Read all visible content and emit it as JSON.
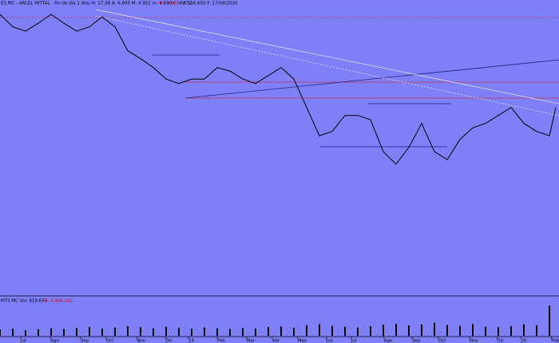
{
  "chart_data": [
    {
      "type": "line",
      "title": "ES.MC - ARCEL MITTAL - Fin de día 1 días H: 17:38 A: 6.895 M: 6.951 m: 6.839 C: 6.872",
      "change": "P: -0.023",
      "subtitle": "V: 516.650 F: 17/04/2020",
      "x": [
        0,
        2,
        4,
        6,
        8,
        10,
        12,
        14,
        16,
        18,
        20,
        22,
        24,
        26,
        28,
        30,
        32,
        34,
        36,
        38,
        40,
        42,
        44,
        46,
        48,
        50,
        52,
        54,
        56,
        58,
        60,
        62,
        64,
        66,
        68,
        70,
        72,
        74,
        76,
        78,
        80,
        82,
        84,
        86,
        87
      ],
      "series": [
        {
          "color": "#000000",
          "values": [
            27.5,
            26.1,
            25.6,
            26.5,
            27.5,
            26.5,
            25.6,
            26.1,
            27.2,
            26.1,
            23.4,
            22.5,
            21.5,
            20.2,
            19.7,
            20.2,
            20.2,
            21.5,
            21.1,
            20.2,
            19.7,
            20.6,
            21.5,
            20.2,
            17.0,
            13.8,
            14.3,
            16.1,
            16.1,
            15.6,
            12.0,
            10.6,
            12.5,
            15.2,
            12.0,
            11.1,
            13.4,
            14.7,
            15.2,
            16.1,
            17.0,
            15.2,
            14.3,
            13.8,
            17.0
          ]
        }
      ],
      "xlim": [
        0,
        87.5
      ],
      "ylim": [
        -4,
        28.4
      ]
    },
    {
      "type": "bar",
      "title": "MTS.MC Vol: 819.655",
      "change": "P: 3.446.241",
      "x": [
        0,
        2,
        4,
        6,
        8,
        10,
        12,
        14,
        16,
        18,
        20,
        22,
        24,
        26,
        28,
        30,
        32,
        34,
        36,
        38,
        40,
        42,
        44,
        46,
        48,
        50,
        52,
        54,
        56,
        58,
        60,
        62,
        64,
        66,
        68,
        70,
        72,
        74,
        76,
        78,
        80,
        82,
        84,
        86
      ],
      "series": [
        {
          "color": "#000000",
          "values": [
            2500000,
            2800000,
            2200000,
            2600000,
            3000000,
            2700000,
            3100000,
            3500000,
            2900000,
            3300000,
            3800000,
            3400000,
            3000000,
            3600000,
            3200000,
            2800000,
            3300000,
            3000000,
            2700000,
            3100000,
            2900000,
            3500000,
            3700000,
            3200000,
            4200000,
            4600000,
            3900000,
            3600000,
            3300000,
            3800000,
            4400000,
            4800000,
            4100000,
            4500000,
            5200000,
            4300000,
            3900000,
            4700000,
            3600000,
            3400000,
            3800000,
            4600000,
            4200000,
            12000000
          ]
        }
      ],
      "xlim": [
        0,
        87.5
      ],
      "ylim": [
        0,
        13000000
      ],
      "xticks": [
        {
          "value": 3.25,
          "label": "Jul"
        },
        {
          "value": 7.9,
          "label": "Ago"
        },
        {
          "value": 12.6,
          "label": "Sep"
        },
        {
          "value": 16.6,
          "label": "Oct"
        },
        {
          "value": 21.4,
          "label": "Nov"
        },
        {
          "value": 25.9,
          "label": "Dic"
        },
        {
          "value": 29.5,
          "label": "19"
        },
        {
          "value": 34,
          "label": "Feb"
        },
        {
          "value": 38.6,
          "label": "Mar"
        },
        {
          "value": 42.6,
          "label": "Abr"
        },
        {
          "value": 46.6,
          "label": "May"
        },
        {
          "value": 51.1,
          "label": "Jun"
        },
        {
          "value": 55,
          "label": "Jul"
        },
        {
          "value": 60.1,
          "label": "Ago"
        },
        {
          "value": 64.5,
          "label": "Sep"
        },
        {
          "value": 68.6,
          "label": "Oct"
        },
        {
          "value": 73.5,
          "label": "Nov"
        },
        {
          "value": 77.8,
          "label": "Dic"
        },
        {
          "value": 81.5,
          "label": "20"
        },
        {
          "value": 86.3,
          "label": "Feb"
        }
      ]
    }
  ]
}
